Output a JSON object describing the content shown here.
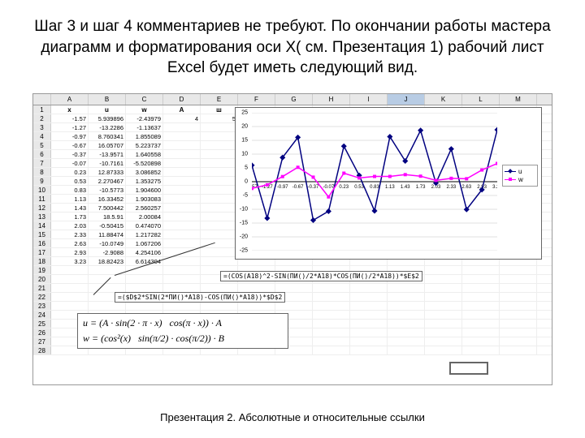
{
  "title": "Шаг 3 и шаг 4 комментариев не требуют. По окончании работы мастера диаграмм и форматирования оси X( см. Презентация 1) рабочий лист Excel будет иметь следующий вид.",
  "footer": "Презентация 2. Абсолютные и относительные ссылки",
  "columns": [
    "A",
    "B",
    "C",
    "D",
    "E",
    "F",
    "G",
    "H",
    "I",
    "J",
    "K",
    "L",
    "M"
  ],
  "selected_col_index": 9,
  "table": {
    "headers": [
      "x",
      "u",
      "w",
      "A",
      "ш"
    ],
    "rows": [
      [
        "-1.57",
        "5.939896",
        "-2.43979",
        "4",
        "5"
      ],
      [
        "-1.27",
        "-13.2286",
        "-1.13637",
        "",
        ""
      ],
      [
        "-0.97",
        "8.760341",
        "1.855089",
        "",
        ""
      ],
      [
        "-0.67",
        "16.05707",
        "5.223737",
        "",
        ""
      ],
      [
        "-0.37",
        "-13.9571",
        "1.640558",
        "",
        ""
      ],
      [
        "-0.07",
        "-10.7161",
        "-5.520898",
        "",
        ""
      ],
      [
        "0.23",
        "12.87333",
        "3.086852",
        "",
        ""
      ],
      [
        "0.53",
        "2.270467",
        "1.353275",
        "",
        ""
      ],
      [
        "0.83",
        "-10.5773",
        "1.904600",
        "",
        ""
      ],
      [
        "1.13",
        "16.33452",
        "1.903083",
        "",
        ""
      ],
      [
        "1.43",
        "7.500442",
        "2.560257",
        "",
        ""
      ],
      [
        "1.73",
        "18.5.91",
        "2.00084",
        "",
        ""
      ],
      [
        "2.03",
        "-0.50415",
        "0.474070",
        "",
        ""
      ],
      [
        "2.33",
        "11.88474",
        "1.217282",
        "",
        ""
      ],
      [
        "2.63",
        "-10.0749",
        "1.067206",
        "",
        ""
      ],
      [
        "2.93",
        "-2.9088",
        "4.254106",
        "",
        ""
      ],
      [
        "3.23",
        "18.82423",
        "6.614304",
        "",
        ""
      ]
    ]
  },
  "chart": {
    "type": "line",
    "background_color": "#ffffff",
    "grid_color": "#c0c0c0",
    "ylim": [
      -25,
      25
    ],
    "ytick_step": 5,
    "y_ticks": [
      25,
      20,
      15,
      10,
      5,
      0,
      -5,
      -10,
      -15,
      -20,
      -25
    ],
    "x_ticks": [
      -1.57,
      -1.27,
      -0.97,
      -0.67,
      -0.37,
      -0.07,
      0.23,
      0.53,
      0.83,
      1.13,
      1.43,
      1.73,
      2.03,
      2.33,
      2.63,
      2.93,
      3.23
    ],
    "series": [
      {
        "name": "u",
        "color": "#000080",
        "marker": "diamond",
        "marker_fill": "#000080",
        "line_width": 1.5,
        "values": [
          5.94,
          -13.23,
          8.76,
          16.06,
          -13.96,
          -10.72,
          12.87,
          2.27,
          -10.58,
          16.33,
          7.5,
          18.59,
          -0.5,
          11.88,
          -10.07,
          -2.91,
          18.82
        ]
      },
      {
        "name": "w",
        "color": "#ff00ff",
        "marker": "square",
        "marker_fill": "#ff00ff",
        "line_width": 1.5,
        "values": [
          -2.44,
          -1.14,
          1.86,
          5.22,
          1.64,
          -5.52,
          3.09,
          1.35,
          1.9,
          1.9,
          2.56,
          2.0,
          0.47,
          1.22,
          1.07,
          4.25,
          6.61
        ]
      }
    ],
    "legend_position": "right"
  },
  "formula1": "=(COS(A18)^2-SIN(ПИ()/2*A18)*COS(ПИ()/2*A18))*$E$2",
  "formula2": "=($D$2*SIN(2*ПИ()*A18)-COS(ПИ()*A18))*$D$2",
  "math1_html": "u = (A · sin(2 · π · x) &nbsp; cos(π · x)) · A",
  "math2_html": "w = (cos²(x) &nbsp; sin(π/2) · cos(π/2)) · B",
  "legend_labels": {
    "u": "u",
    "w": "w"
  }
}
